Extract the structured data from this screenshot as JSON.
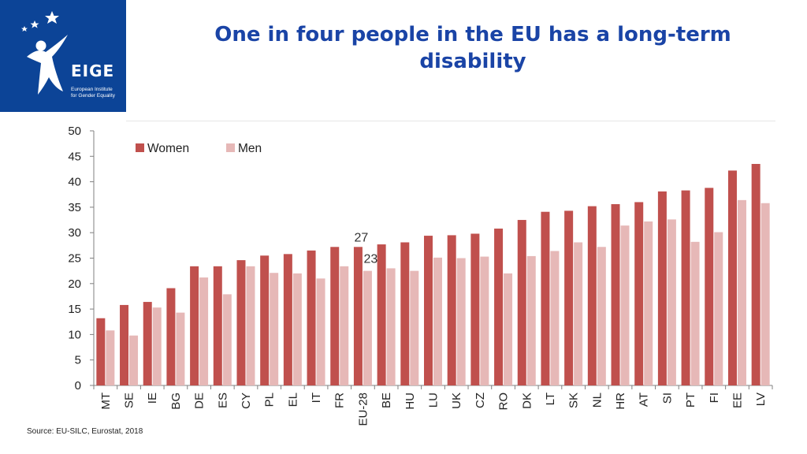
{
  "logo": {
    "word": "EIGE",
    "subtitle_line1": "European Institute",
    "subtitle_line2": "for Gender Equality",
    "background": "#0c4497"
  },
  "title_line1": "One in four people in the EU has a long-term",
  "title_line2": "disability",
  "source": "Source: EU-SILC, Eurostat, 2018",
  "chart_data": {
    "type": "bar",
    "title": "One in four people in the EU has a long-term disability",
    "xlabel": "",
    "ylabel": "",
    "ylim": [
      0,
      50
    ],
    "yticks": [
      0,
      5,
      10,
      15,
      20,
      25,
      30,
      35,
      40,
      45,
      50
    ],
    "legend_position": "top-left",
    "categories": [
      "MT",
      "SE",
      "IE",
      "BG",
      "DE",
      "ES",
      "CY",
      "PL",
      "EL",
      "IT",
      "FR",
      "EU-28",
      "BE",
      "HU",
      "LU",
      "UK",
      "CZ",
      "RO",
      "DK",
      "LT",
      "SK",
      "NL",
      "HR",
      "AT",
      "SI",
      "PT",
      "FI",
      "EE",
      "LV"
    ],
    "series": [
      {
        "name": "Women",
        "color": "#c0504d",
        "values": [
          13.2,
          15.8,
          16.4,
          19.1,
          23.4,
          23.4,
          24.6,
          25.5,
          25.8,
          26.5,
          27.2,
          27.2,
          27.7,
          28.1,
          29.4,
          29.5,
          29.8,
          30.8,
          32.5,
          34.1,
          34.3,
          35.2,
          35.6,
          36.0,
          38.1,
          38.3,
          38.8,
          42.2,
          43.5
        ]
      },
      {
        "name": "Men",
        "color": "#e6b8b7",
        "values": [
          10.8,
          9.8,
          15.3,
          14.3,
          21.2,
          17.9,
          23.4,
          22.1,
          22.0,
          21.0,
          23.4,
          22.5,
          23.0,
          22.5,
          25.1,
          25.0,
          25.3,
          22.0,
          25.4,
          26.4,
          28.1,
          27.2,
          31.4,
          32.2,
          32.6,
          28.2,
          30.1,
          36.4,
          35.8
        ]
      }
    ],
    "annotations": [
      {
        "category": "EU-28",
        "series": "Women",
        "text": "27"
      },
      {
        "category": "EU-28",
        "series": "Men",
        "text": "23"
      }
    ]
  }
}
